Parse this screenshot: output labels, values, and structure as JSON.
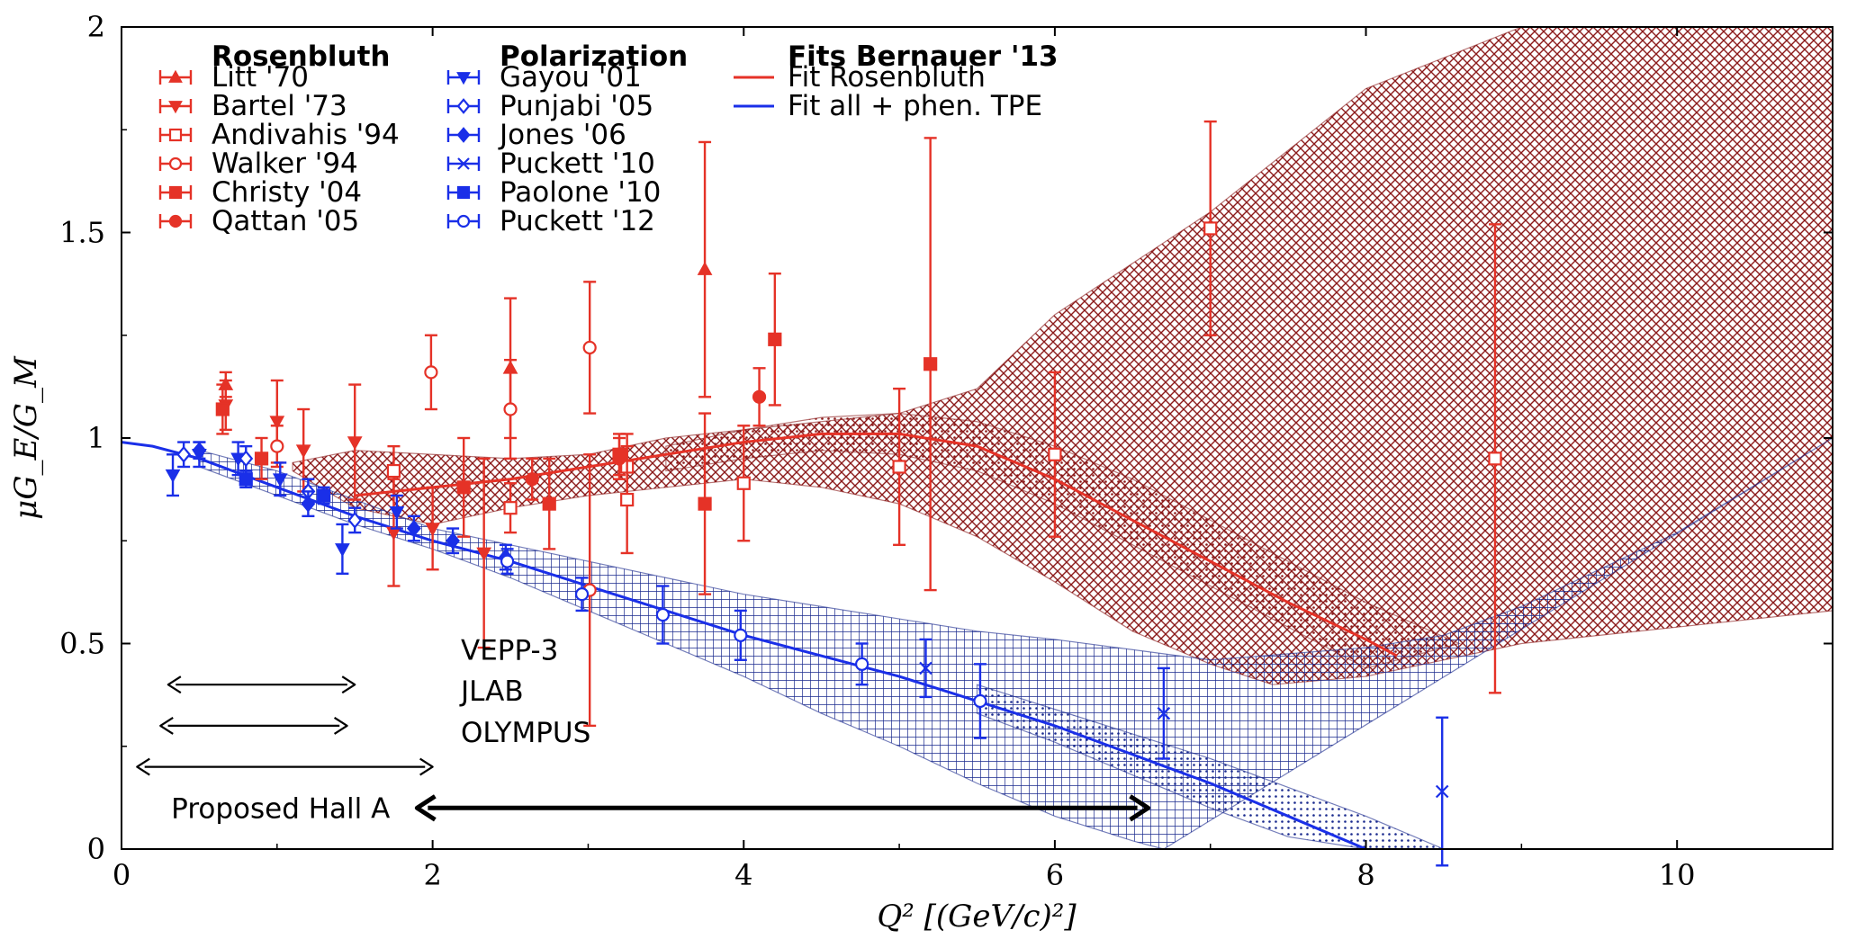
{
  "colors": {
    "rosenbluth": "#e53227",
    "polarization": "#1a2fe8",
    "band_red": "#8b1a1a",
    "band_blue": "#1a2a8e",
    "annotation": "#000000"
  },
  "chart_data": {
    "type": "scatter",
    "xlabel": "Q² [(GeV/c)²]",
    "ylabel": "μG_E/G_M",
    "xlim": [
      0,
      11
    ],
    "ylim": [
      0,
      2
    ],
    "x_ticks": [
      "0",
      "2",
      "4",
      "6",
      "8",
      "10"
    ],
    "y_ticks": [
      "0",
      "0.5",
      "1",
      "1.5",
      "2"
    ],
    "legend": {
      "placement": "top-left",
      "groups": [
        {
          "title": "Rosenbluth",
          "entries": [
            "Litt '70",
            "Bartel '73",
            "Andivahis '94",
            "Walker '94",
            "Christy '04",
            "Qattan '05"
          ]
        },
        {
          "title": "Polarization",
          "entries": [
            "Gayou '01",
            "Punjabi '05",
            "Jones '06",
            "Puckett '10",
            "Paolone '10",
            "Puckett '12"
          ]
        },
        {
          "title": "Fits Bernauer '13",
          "entries": [
            "Fit Rosenbluth",
            "Fit all + phen. TPE"
          ]
        }
      ]
    },
    "series": [
      {
        "name": "Litt '70",
        "group": "rosenbluth",
        "marker": "triangle-up",
        "points": [
          [
            0.67,
            1.13,
            0.03
          ],
          [
            2.5,
            1.17,
            0.17
          ],
          [
            3.75,
            1.41,
            0.31
          ]
        ]
      },
      {
        "name": "Bartel '73",
        "group": "rosenbluth",
        "marker": "triangle-down",
        "points": [
          [
            0.67,
            1.08,
            0.06
          ],
          [
            1.0,
            1.04,
            0.1
          ],
          [
            1.17,
            0.97,
            0.1
          ],
          [
            1.5,
            0.99,
            0.14
          ],
          [
            1.75,
            0.77,
            0.13
          ],
          [
            2.0,
            0.78,
            0.1
          ],
          [
            2.33,
            0.72,
            0.23
          ]
        ]
      },
      {
        "name": "Andivahis '94",
        "group": "rosenbluth",
        "marker": "square-open",
        "points": [
          [
            1.75,
            0.92,
            0.06
          ],
          [
            2.5,
            0.83,
            0.06
          ],
          [
            3.25,
            0.93,
            0.08
          ],
          [
            3.25,
            0.85,
            0.13
          ],
          [
            4.0,
            0.89,
            0.14
          ],
          [
            5.0,
            0.93,
            0.19
          ],
          [
            6.0,
            0.96,
            0.2
          ],
          [
            7.0,
            1.51,
            0.26
          ],
          [
            8.83,
            0.95,
            0.57
          ]
        ]
      },
      {
        "name": "Walker '94",
        "group": "rosenbluth",
        "marker": "circle-open",
        "points": [
          [
            1.0,
            0.98,
            0.05
          ],
          [
            1.99,
            1.16,
            0.09
          ],
          [
            2.5,
            1.07,
            0.12
          ],
          [
            3.01,
            1.22,
            0.16
          ],
          [
            3.01,
            0.63,
            0.33
          ]
        ]
      },
      {
        "name": "Christy '04",
        "group": "rosenbluth",
        "marker": "square",
        "points": [
          [
            0.65,
            1.07,
            0.06
          ],
          [
            0.9,
            0.95,
            0.05
          ],
          [
            2.2,
            0.88,
            0.12
          ],
          [
            2.75,
            0.84,
            0.11
          ],
          [
            3.2,
            0.96,
            0.05
          ],
          [
            3.75,
            0.84,
            0.22
          ],
          [
            4.2,
            1.24,
            0.16
          ],
          [
            5.2,
            1.18,
            0.55
          ]
        ]
      },
      {
        "name": "Qattan '05",
        "group": "rosenbluth",
        "marker": "circle",
        "points": [
          [
            2.64,
            0.9,
            0.05
          ],
          [
            3.2,
            0.95,
            0.05
          ],
          [
            4.1,
            1.1,
            0.07
          ]
        ]
      },
      {
        "name": "Gayou '01",
        "group": "polarization",
        "marker": "triangle-down",
        "points": [
          [
            0.33,
            0.91,
            0.05
          ],
          [
            0.5,
            0.96,
            0.03
          ],
          [
            0.75,
            0.95,
            0.04
          ],
          [
            1.02,
            0.9,
            0.04
          ],
          [
            1.42,
            0.73,
            0.06
          ],
          [
            1.77,
            0.82,
            0.04
          ]
        ]
      },
      {
        "name": "Punjabi '05",
        "group": "polarization",
        "marker": "diamond-open",
        "points": [
          [
            0.4,
            0.96,
            0.03
          ],
          [
            0.8,
            0.95,
            0.03
          ],
          [
            1.2,
            0.87,
            0.03
          ],
          [
            1.5,
            0.8,
            0.03
          ]
        ]
      },
      {
        "name": "Jones '06",
        "group": "polarization",
        "marker": "diamond",
        "points": [
          [
            0.5,
            0.97,
            0.02
          ],
          [
            1.2,
            0.84,
            0.03
          ],
          [
            1.88,
            0.78,
            0.03
          ],
          [
            2.13,
            0.75,
            0.03
          ],
          [
            2.47,
            0.71,
            0.03
          ]
        ]
      },
      {
        "name": "Puckett '10",
        "group": "polarization",
        "marker": "x",
        "points": [
          [
            5.17,
            0.44,
            0.07
          ],
          [
            6.7,
            0.33,
            0.11
          ],
          [
            8.49,
            0.14,
            0.18
          ]
        ]
      },
      {
        "name": "Paolone '10",
        "group": "polarization",
        "marker": "square",
        "points": [
          [
            0.8,
            0.9,
            0.02
          ],
          [
            1.3,
            0.86,
            0.02
          ]
        ]
      },
      {
        "name": "Puckett '12",
        "group": "polarization",
        "marker": "circle-open",
        "points": [
          [
            2.48,
            0.7,
            0.03
          ],
          [
            2.96,
            0.62,
            0.04
          ],
          [
            3.48,
            0.57,
            0.07
          ],
          [
            3.98,
            0.52,
            0.06
          ],
          [
            4.76,
            0.45,
            0.05
          ],
          [
            5.52,
            0.36,
            0.09
          ]
        ]
      }
    ],
    "fits": [
      {
        "name": "Fit Rosenbluth",
        "group": "rosenbluth",
        "x": [
          1.5,
          2.0,
          2.5,
          3.0,
          3.5,
          4.0,
          4.5,
          5.0,
          5.5,
          6.0,
          6.5,
          7.0,
          7.5,
          8.0,
          8.2
        ],
        "y": [
          0.86,
          0.88,
          0.9,
          0.93,
          0.96,
          0.99,
          1.01,
          1.01,
          0.98,
          0.9,
          0.8,
          0.7,
          0.6,
          0.51,
          0.47
        ]
      },
      {
        "name": "Fit all + phen. TPE",
        "group": "polarization",
        "x": [
          0,
          0.2,
          0.5,
          1.0,
          1.5,
          2.0,
          2.5,
          3.0,
          3.5,
          4.0,
          4.5,
          5.0,
          5.5,
          6.0,
          6.5,
          7.0,
          7.5,
          8.0
        ],
        "y": [
          0.99,
          0.98,
          0.95,
          0.88,
          0.81,
          0.75,
          0.7,
          0.64,
          0.58,
          0.52,
          0.47,
          0.42,
          0.36,
          0.3,
          0.23,
          0.16,
          0.08,
          0.0
        ]
      }
    ],
    "bands": [
      {
        "group": "rosenbluth",
        "style": "crosshatch",
        "lower_x": [
          1.1,
          1.5,
          2.0,
          2.5,
          3.0,
          3.5,
          4.0,
          4.5,
          5.0,
          5.5,
          6.0,
          6.5,
          7.0,
          7.4,
          8.0,
          9.0,
          11.0
        ],
        "lower_y": [
          0.92,
          0.83,
          0.79,
          0.83,
          0.86,
          0.88,
          0.9,
          0.88,
          0.84,
          0.76,
          0.65,
          0.53,
          0.45,
          0.4,
          0.42,
          0.5,
          0.58
        ],
        "upper_x": [
          1.1,
          1.5,
          2.0,
          2.5,
          3.0,
          3.5,
          4.0,
          4.5,
          5.0,
          5.5,
          6.0,
          7.0,
          8.0,
          9.0,
          11.0
        ],
        "upper_y": [
          0.94,
          0.97,
          0.96,
          0.95,
          0.96,
          1.0,
          1.02,
          1.04,
          1.06,
          1.12,
          1.3,
          1.55,
          1.85,
          2.0,
          2.0
        ]
      },
      {
        "group": "rosenbluth",
        "style": "dots",
        "lower_x": [
          3.5,
          4.0,
          4.5,
          5.0,
          5.5,
          6.0,
          6.5,
          7.0,
          7.5,
          8.0
        ],
        "lower_y": [
          0.92,
          0.95,
          0.97,
          0.96,
          0.92,
          0.84,
          0.74,
          0.64,
          0.54,
          0.44
        ],
        "upper_x": [
          3.5,
          4.0,
          4.5,
          5.0,
          5.5,
          6.0,
          6.5,
          7.0,
          7.5,
          8.0,
          8.6
        ],
        "upper_y": [
          0.98,
          1.02,
          1.05,
          1.06,
          1.04,
          0.98,
          0.9,
          0.8,
          0.7,
          0.6,
          0.5
        ]
      },
      {
        "group": "polarization",
        "style": "grid",
        "lower_x": [
          0.5,
          1.0,
          1.5,
          2.0,
          2.5,
          3.0,
          3.5,
          4.0,
          4.5,
          5.0,
          5.5,
          6.0,
          6.5,
          6.7
        ],
        "lower_y": [
          0.93,
          0.86,
          0.79,
          0.73,
          0.66,
          0.58,
          0.5,
          0.42,
          0.33,
          0.25,
          0.16,
          0.08,
          0.02,
          0.0
        ],
        "upper_x": [
          0.5,
          1.0,
          1.5,
          2.0,
          2.5,
          3.0,
          3.5,
          4.0,
          4.5,
          5.0,
          5.5,
          6.0,
          7.0,
          8.0,
          8.5,
          9.0,
          10.0,
          11.0
        ],
        "upper_y": [
          0.97,
          0.92,
          0.85,
          0.78,
          0.74,
          0.7,
          0.66,
          0.62,
          0.59,
          0.56,
          0.53,
          0.51,
          0.46,
          0.49,
          0.52,
          0.59,
          0.77,
          1.0
        ]
      },
      {
        "group": "polarization",
        "style": "dots",
        "lower_x": [
          5.5,
          6.0,
          6.5,
          7.0,
          7.5,
          8.0
        ],
        "lower_y": [
          0.33,
          0.26,
          0.18,
          0.1,
          0.03,
          0.0
        ],
        "upper_x": [
          5.5,
          6.0,
          6.5,
          7.0,
          7.5,
          8.0,
          8.5
        ],
        "upper_y": [
          0.4,
          0.34,
          0.28,
          0.22,
          0.15,
          0.08,
          0.0
        ]
      }
    ],
    "ranges": [
      {
        "label": "VEPP-3",
        "x": [
          0.3,
          1.5
        ],
        "y": 0.4,
        "style": "thin"
      },
      {
        "label": "JLAB",
        "x": [
          0.25,
          1.45
        ],
        "y": 0.3,
        "style": "thin"
      },
      {
        "label": "OLYMPUS",
        "x": [
          0.1,
          2.0
        ],
        "y": 0.2,
        "style": "thin"
      },
      {
        "label": "Proposed Hall A",
        "x": [
          1.9,
          6.6
        ],
        "y": 0.1,
        "style": "thick"
      }
    ]
  }
}
